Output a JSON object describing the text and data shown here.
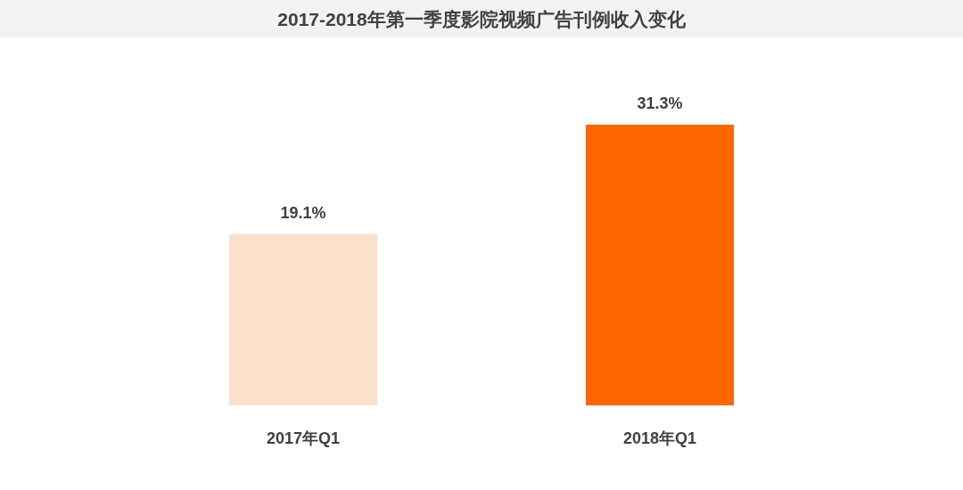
{
  "chart_data": {
    "type": "bar",
    "title": "2017-2018年第一季度影院视频广告刊例收入变化",
    "categories": [
      "2017年Q1",
      "2018年Q1"
    ],
    "values": [
      19.1,
      31.3
    ],
    "value_labels": [
      "19.1%",
      "31.3%"
    ],
    "colors": [
      "#fce0cc",
      "#ff6600"
    ]
  }
}
